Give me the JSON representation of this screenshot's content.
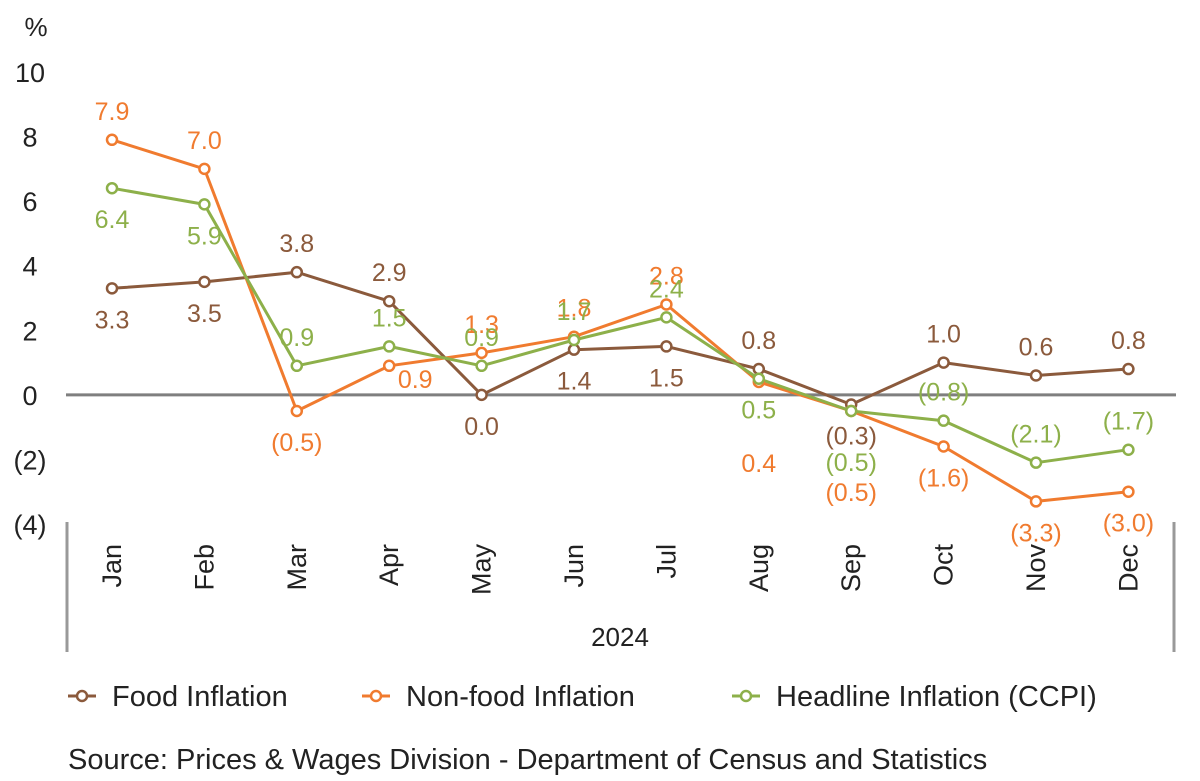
{
  "chart_data": {
    "type": "line",
    "title": "",
    "unit_label": "%",
    "year_label": "2024",
    "categories": [
      "Jan",
      "Feb",
      "Mar",
      "Apr",
      "May",
      "Jun",
      "Jul",
      "Aug",
      "Sep",
      "Oct",
      "Nov",
      "Dec"
    ],
    "ylim": [
      -4,
      10
    ],
    "yticks": [
      {
        "value": 10,
        "label": "10"
      },
      {
        "value": 8,
        "label": "8"
      },
      {
        "value": 6,
        "label": "6"
      },
      {
        "value": 4,
        "label": "4"
      },
      {
        "value": 2,
        "label": "2"
      },
      {
        "value": 0,
        "label": "0"
      },
      {
        "value": -2,
        "label": "(2)"
      },
      {
        "value": -4,
        "label": "(4)"
      }
    ],
    "series": [
      {
        "name": "Food Inflation",
        "color": "#8B5A3C",
        "values": [
          3.3,
          3.5,
          3.8,
          2.9,
          0.0,
          1.4,
          1.5,
          0.8,
          -0.3,
          1.0,
          0.6,
          0.8
        ],
        "labels": [
          "3.3",
          "3.5",
          "3.8",
          "2.9",
          "0.0",
          "1.4",
          "1.5",
          "0.8",
          "(0.3)",
          "1.0",
          "0.6",
          "0.8"
        ],
        "label_pos": [
          "below",
          "below",
          "above",
          "above",
          "below",
          "below",
          "below",
          "above",
          "below",
          "above",
          "above",
          "above"
        ]
      },
      {
        "name": "Non-food Inflation",
        "color": "#F07B2F",
        "values": [
          7.9,
          7.0,
          -0.5,
          0.9,
          1.3,
          1.8,
          2.8,
          0.4,
          -0.5,
          -1.6,
          -3.3,
          -3.0
        ],
        "labels": [
          "7.9",
          "7.0",
          "(0.5)",
          "0.9",
          "1.3",
          "1.8",
          "2.8",
          "0.4",
          "(0.5)",
          "(1.6)",
          "(3.3)",
          "(3.0)"
        ],
        "label_pos": [
          "above",
          "above",
          "below",
          "belowright",
          "above",
          "above",
          "above",
          "below2",
          "below2",
          "below",
          "below",
          "below"
        ]
      },
      {
        "name": "Headline Inflation (CCPI)",
        "color": "#8DB04A",
        "values": [
          6.4,
          5.9,
          0.9,
          1.5,
          0.9,
          1.7,
          2.4,
          0.5,
          -0.5,
          -0.8,
          -2.1,
          -1.7
        ],
        "labels": [
          "6.4",
          "5.9",
          "0.9",
          "1.5",
          "0.9",
          "1.7",
          "2.4",
          "0.5",
          "(0.5)",
          "(0.8)",
          "(2.1)",
          "(1.7)"
        ],
        "label_pos": [
          "below",
          "below",
          "above",
          "above",
          "above",
          "above",
          "above",
          "below",
          "below1",
          "above",
          "above",
          "above"
        ]
      }
    ],
    "legend": [
      "Food Inflation",
      "Non-food Inflation",
      "Headline Inflation (CCPI)"
    ],
    "source": "Source: Prices & Wages Division - Department of Census and Statistics"
  }
}
